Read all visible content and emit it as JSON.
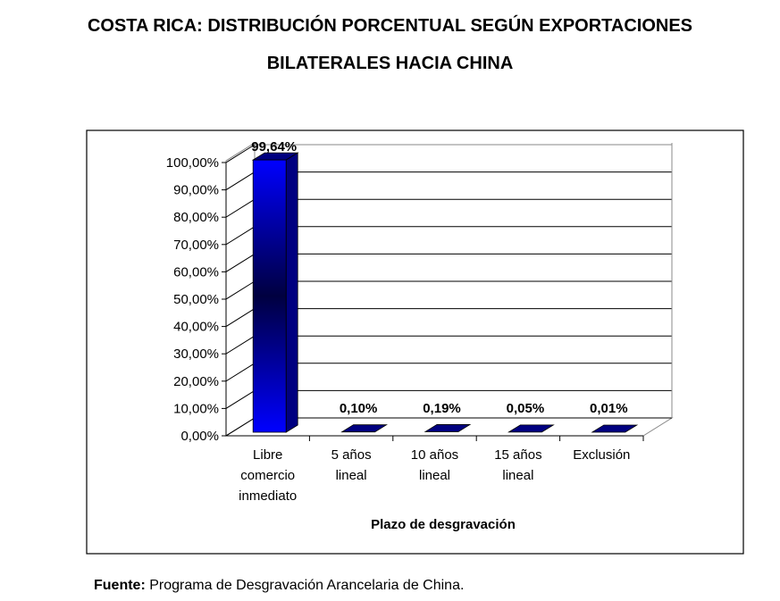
{
  "title_line1": "COSTA RICA: DISTRIBUCIÓN PORCENTUAL SEGÚN EXPORTACIONES",
  "title_line2": "BILATERALES HACIA CHINA",
  "source_label": "Fuente:",
  "source_text": " Programa de Desgravación Arancelaria de China.",
  "chart_data": {
    "type": "bar",
    "style": "3d-column",
    "categories": [
      [
        "Libre",
        "comercio",
        "inmediato"
      ],
      [
        "5 años",
        "lineal"
      ],
      [
        "10 años",
        "lineal"
      ],
      [
        "15 años",
        "lineal"
      ],
      [
        "Exclusión"
      ]
    ],
    "values": [
      99.64,
      0.1,
      0.19,
      0.05,
      0.01
    ],
    "data_labels": [
      "99,64%",
      "0,10%",
      "0,19%",
      "0,05%",
      "0,01%"
    ],
    "xlabel": "Plazo de desgravación",
    "ylabel": "",
    "ylim": [
      0,
      100
    ],
    "yticks": [
      "0,00%",
      "10,00%",
      "20,00%",
      "30,00%",
      "40,00%",
      "50,00%",
      "60,00%",
      "70,00%",
      "80,00%",
      "90,00%",
      "100,00%"
    ],
    "grid": true,
    "bar_color": "#0000FF",
    "bar_dark_color": "#000080"
  }
}
